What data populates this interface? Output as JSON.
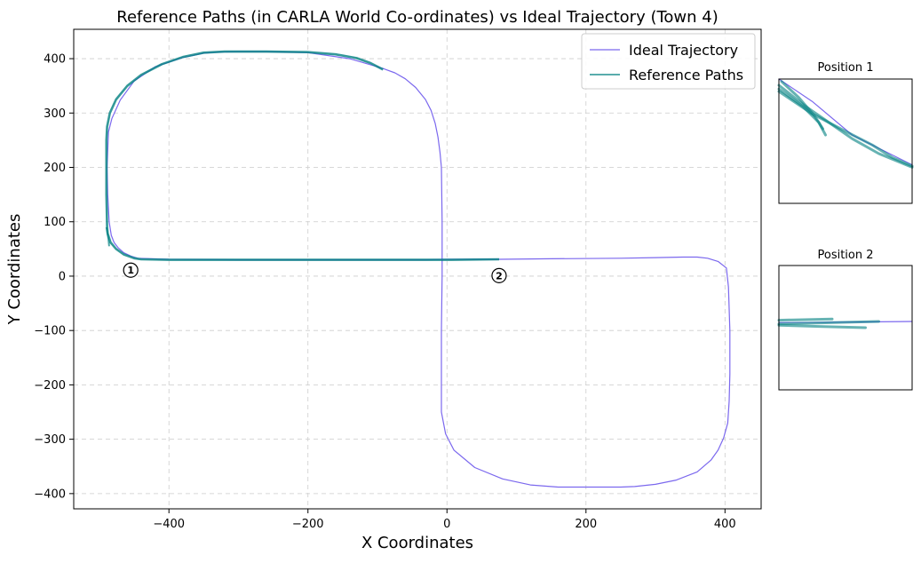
{
  "chart_data": [
    {
      "type": "line",
      "title": "Reference Paths (in CARLA World Co-ordinates) vs Ideal Trajectory (Town 4)",
      "xlabel": "X Coordinates",
      "ylabel": "Y Coordinates",
      "xlim": [
        -537,
        452
      ],
      "ylim": [
        -428,
        454
      ],
      "xticks": [
        -400,
        -200,
        0,
        200,
        400
      ],
      "yticks": [
        400,
        300,
        200,
        100,
        0,
        -100,
        -200,
        -300,
        -400
      ],
      "xtick_labels": [
        "−400",
        "−200",
        "0",
        "200",
        "400"
      ],
      "ytick_labels": [
        "400",
        "300",
        "200",
        "100",
        "0",
        "−100",
        "−200",
        "−300",
        "−400"
      ],
      "grid": true,
      "legend_position": "top-right",
      "series": [
        {
          "name": "Ideal Trajectory",
          "color": "#7b68ee",
          "x": [
            -92,
            -140,
            -200,
            -260,
            -300,
            -330,
            -350,
            -380,
            -420,
            -450,
            -470,
            -482,
            -487,
            -489,
            -488,
            -486,
            -483,
            -479,
            -473,
            -465,
            -455,
            -445,
            -400,
            -300,
            -200,
            -100,
            -30,
            0,
            75,
            150,
            250,
            300,
            340,
            360,
            375,
            390,
            402,
            405,
            407,
            407,
            406,
            404,
            398,
            390,
            380,
            360,
            330,
            300,
            270,
            250,
            200,
            160,
            120,
            80,
            40,
            10,
            -2,
            -8,
            -8,
            -8,
            -7,
            -7,
            -8,
            -10,
            -13,
            -17,
            -23,
            -31,
            -45,
            -60,
            -75,
            -88,
            -92
          ],
          "y": [
            382,
            400,
            411,
            413,
            413,
            412,
            410,
            402,
            385,
            359,
            324,
            290,
            265,
            200,
            150,
            100,
            75,
            62,
            52,
            43,
            37,
            33,
            31,
            30,
            30,
            30,
            30,
            31,
            31,
            32,
            33,
            34,
            35,
            35,
            33,
            27,
            15,
            -20,
            -100,
            -180,
            -230,
            -270,
            -298,
            -320,
            -338,
            -360,
            -375,
            -383,
            -387,
            -388,
            -388,
            -388,
            -384,
            -373,
            -352,
            -320,
            -290,
            -250,
            -210,
            -100,
            0,
            100,
            200,
            228,
            256,
            281,
            305,
            325,
            347,
            363,
            374,
            380,
            382
          ]
        },
        {
          "name": "Reference Paths",
          "color": "#008080",
          "x": [
            75,
            0,
            -100,
            -200,
            -300,
            -400,
            -440,
            -450,
            -465,
            -476,
            -484,
            -488,
            -489,
            -490,
            -490,
            -489,
            -485,
            -476,
            -460,
            -440,
            -410,
            -380,
            -350,
            -320,
            -260,
            -200,
            -160,
            -130,
            -110,
            -92
          ],
          "y": [
            31,
            30,
            30,
            30,
            30,
            30,
            31,
            33,
            40,
            50,
            62,
            78,
            90,
            150,
            250,
            275,
            300,
            325,
            350,
            370,
            390,
            403,
            411,
            413,
            413,
            412,
            408,
            401,
            392,
            380
          ],
          "x2": [
            -490,
            -487,
            -486
          ],
          "y2": [
            90,
            68,
            55
          ]
        }
      ],
      "markers": [
        {
          "label": "1",
          "x": -455,
          "y": 11
        },
        {
          "label": "2",
          "x": 75,
          "y": 1
        }
      ]
    },
    {
      "type": "line",
      "title": "Position 1",
      "series": [
        {
          "name": "Ideal Trajectory",
          "color": "#7b68ee",
          "x": [
            0,
            0.25,
            0.55,
            1.0
          ],
          "y": [
            1.0,
            0.82,
            0.55,
            0.31
          ]
        },
        {
          "name": "Reference Paths",
          "color": "#008080",
          "x": [
            0,
            0.2,
            0.35,
            0.55,
            0.75,
            1.0
          ],
          "y": [
            0.95,
            0.78,
            0.67,
            0.52,
            0.4,
            0.29
          ]
        },
        {
          "name": "Reference Paths",
          "color": "#008080",
          "x": [
            0,
            0.18,
            0.3,
            0.35
          ],
          "y": [
            0.92,
            0.78,
            0.65,
            0.55
          ]
        },
        {
          "name": "Reference Paths",
          "color": "#008080",
          "x": [
            0.02,
            0.15,
            0.27,
            0.33
          ],
          "y": [
            0.98,
            0.85,
            0.7,
            0.6
          ]
        },
        {
          "name": "Reference Paths",
          "color": "#008080",
          "x": [
            0,
            0.25,
            0.5,
            0.7,
            0.85,
            1.0
          ],
          "y": [
            0.9,
            0.72,
            0.58,
            0.47,
            0.37,
            0.3
          ]
        }
      ]
    },
    {
      "type": "line",
      "title": "Position 2",
      "series": [
        {
          "name": "Ideal Trajectory",
          "color": "#7b68ee",
          "x": [
            0,
            1.0
          ],
          "y": [
            0.54,
            0.55
          ]
        },
        {
          "name": "Reference Paths",
          "color": "#008080",
          "x": [
            0,
            0.75
          ],
          "y": [
            0.53,
            0.55
          ]
        },
        {
          "name": "Reference Paths",
          "color": "#008080",
          "x": [
            0,
            0.3,
            0.65
          ],
          "y": [
            0.52,
            0.51,
            0.5
          ]
        },
        {
          "name": "Reference Paths",
          "color": "#008080",
          "x": [
            0,
            0.4
          ],
          "y": [
            0.56,
            0.57
          ]
        }
      ]
    }
  ]
}
